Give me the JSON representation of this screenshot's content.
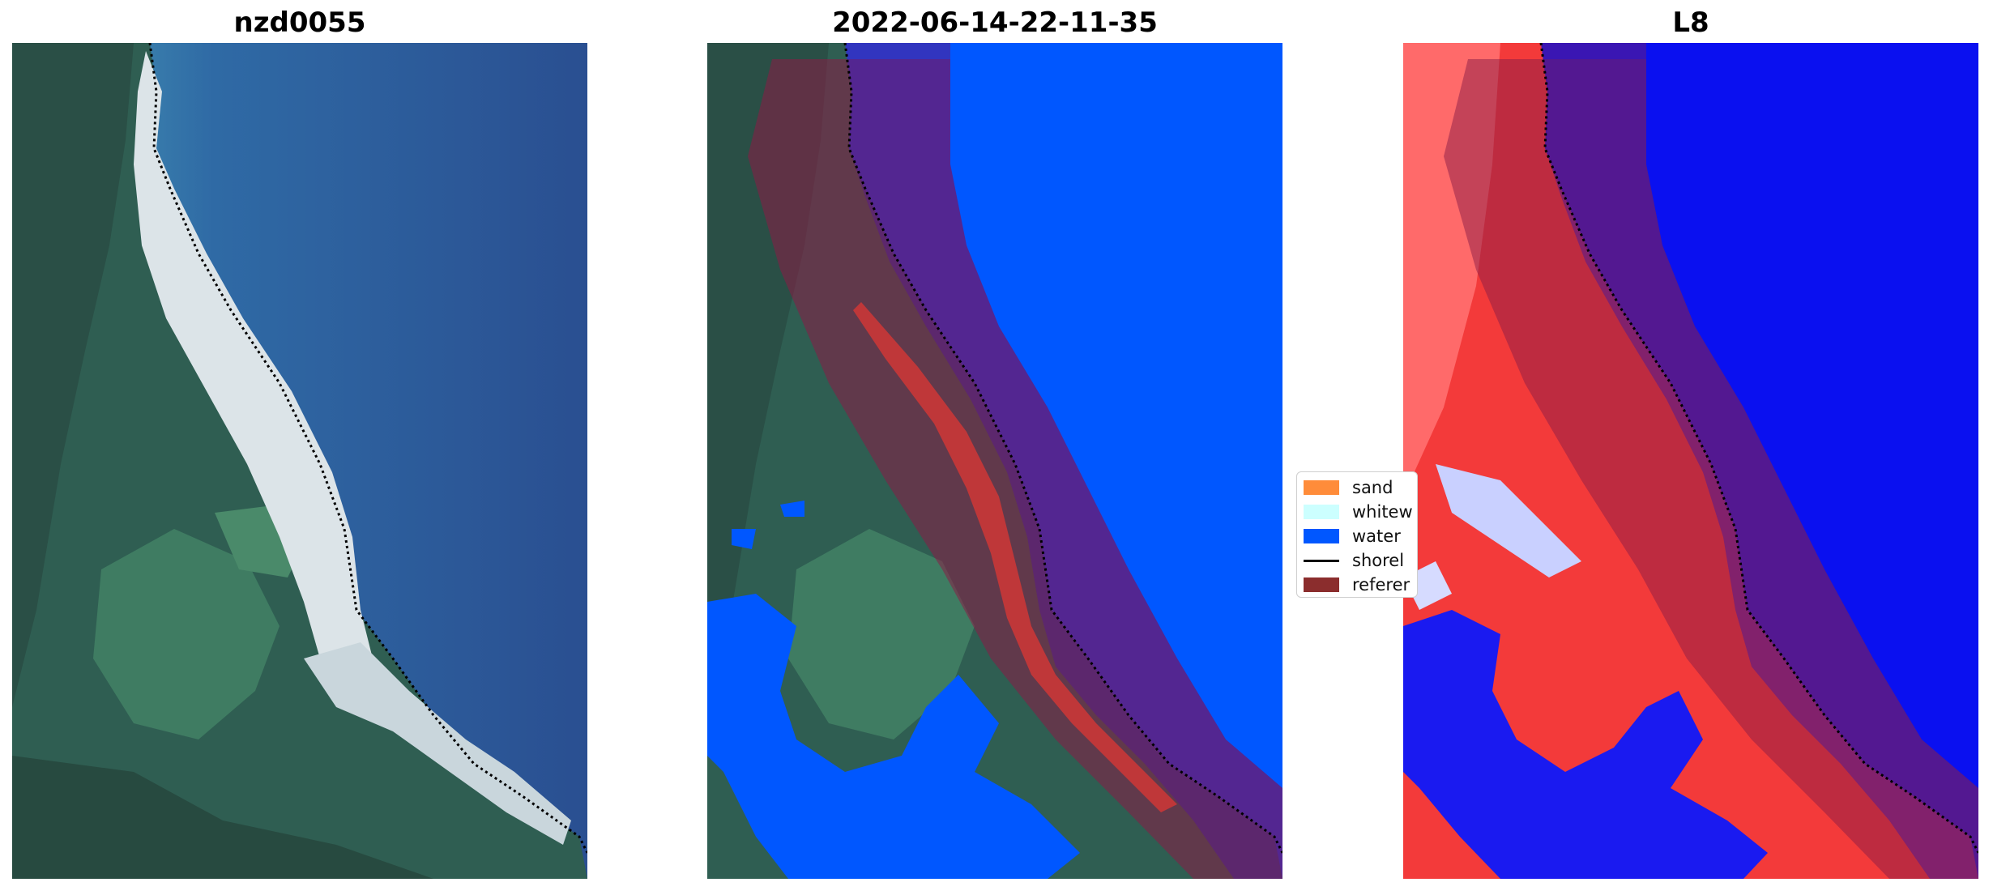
{
  "panels": [
    {
      "title": "nzd0055"
    },
    {
      "title": "2022-06-14-22-11-35"
    },
    {
      "title": "L8"
    }
  ],
  "legend": {
    "items": [
      {
        "label": "sand",
        "color": "#ff8c3a",
        "kind": "patch"
      },
      {
        "label": "whitew",
        "color": "#ccffff",
        "kind": "patch"
      },
      {
        "label": "water",
        "color": "#0057ff",
        "kind": "patch"
      },
      {
        "label": "shorel",
        "color": "#000000",
        "kind": "line"
      },
      {
        "label": "referer",
        "color": "#8b2d2d",
        "kind": "patch"
      }
    ]
  },
  "colors": {
    "sea": "#2b5495",
    "land": "#3a7168",
    "beach": "#dfe6ea",
    "water_class": "#0057ff",
    "buffer_overlay": "#8a1b45",
    "index_red": "#f33a3a",
    "index_blue": "#0a10f0"
  }
}
